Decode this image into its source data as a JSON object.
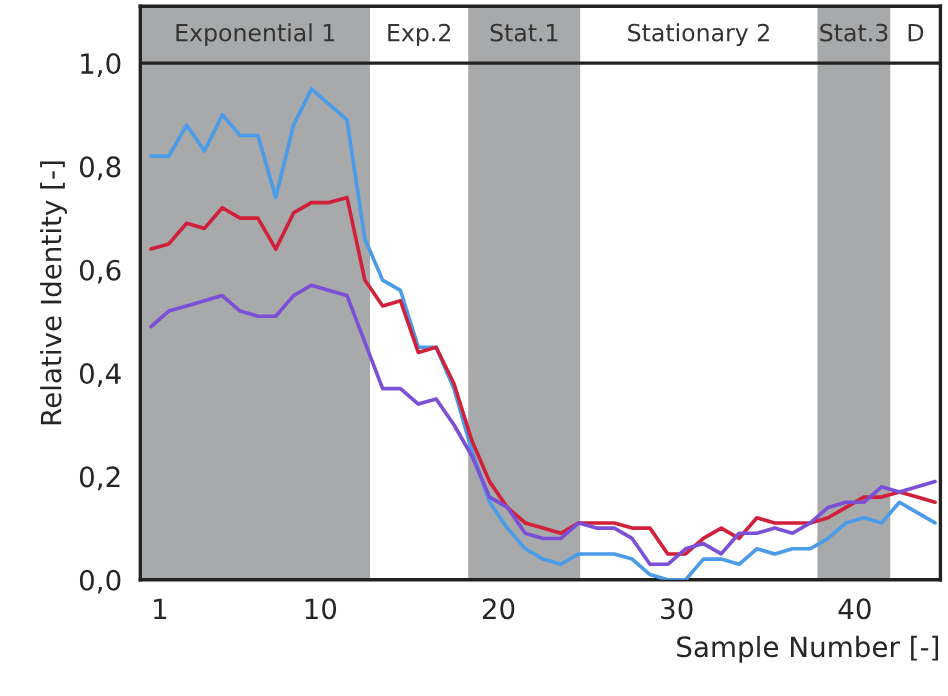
{
  "chart_data": {
    "type": "line",
    "xlabel": "Sample Number [-]",
    "ylabel": "Relative Identity [-]",
    "x": [
      0.5,
      1.5,
      2.5,
      3.5,
      4.5,
      5.5,
      6.5,
      7.5,
      8.5,
      9.5,
      10.5,
      11.5,
      12.5,
      13.5,
      14.5,
      15.5,
      16.5,
      17.5,
      18.5,
      19.5,
      20.5,
      21.5,
      22.5,
      23.5,
      24.5,
      25.5,
      26.5,
      27.5,
      28.5,
      29.5,
      30.5,
      31.5,
      32.5,
      33.5,
      34.5,
      35.5,
      36.5,
      37.5,
      38.5,
      39.5,
      40.5,
      41.5,
      42.5,
      43.5,
      44.5
    ],
    "series": [
      {
        "color": "#4a9be8",
        "values": [
          0.82,
          0.82,
          0.88,
          0.83,
          0.9,
          0.86,
          0.86,
          0.74,
          0.88,
          0.95,
          0.92,
          0.89,
          0.66,
          0.58,
          0.56,
          0.45,
          0.45,
          0.37,
          0.25,
          0.15,
          0.1,
          0.06,
          0.04,
          0.03,
          0.05,
          0.05,
          0.05,
          0.04,
          0.01,
          0.0,
          0.0,
          0.04,
          0.04,
          0.03,
          0.06,
          0.05,
          0.06,
          0.06,
          0.08,
          0.11,
          0.12,
          0.11,
          0.15,
          0.13,
          0.11
        ]
      },
      {
        "color": "#d0203a",
        "values": [
          0.64,
          0.65,
          0.69,
          0.68,
          0.72,
          0.7,
          0.7,
          0.64,
          0.71,
          0.73,
          0.73,
          0.74,
          0.58,
          0.53,
          0.54,
          0.44,
          0.45,
          0.38,
          0.27,
          0.19,
          0.14,
          0.11,
          0.1,
          0.09,
          0.11,
          0.11,
          0.11,
          0.1,
          0.1,
          0.05,
          0.05,
          0.08,
          0.1,
          0.08,
          0.12,
          0.11,
          0.11,
          0.11,
          0.12,
          0.14,
          0.16,
          0.16,
          0.17,
          0.16,
          0.15
        ]
      },
      {
        "color": "#7b4fd6",
        "values": [
          0.49,
          0.52,
          0.53,
          0.54,
          0.55,
          0.52,
          0.51,
          0.51,
          0.55,
          0.57,
          0.56,
          0.55,
          0.46,
          0.37,
          0.37,
          0.34,
          0.35,
          0.3,
          0.24,
          0.16,
          0.14,
          0.09,
          0.08,
          0.08,
          0.11,
          0.1,
          0.1,
          0.08,
          0.03,
          0.03,
          0.06,
          0.07,
          0.05,
          0.09,
          0.09,
          0.1,
          0.09,
          0.11,
          0.14,
          0.15,
          0.15,
          0.18,
          0.17,
          0.18,
          0.19
        ]
      }
    ],
    "xlim": [
      -0.1,
      44.8
    ],
    "xticks": [
      1,
      10,
      20,
      30,
      40
    ],
    "ylim": [
      0,
      1.11
    ],
    "yticks": [
      {
        "value": 0,
        "label": "0,0"
      },
      {
        "value": 0.2,
        "label": "0,2"
      },
      {
        "value": 0.4,
        "label": "0,4"
      },
      {
        "value": 0.6,
        "label": "0,6"
      },
      {
        "value": 0.8,
        "label": "0,8"
      },
      {
        "value": 1.0,
        "label": "1,0"
      }
    ],
    "bands": [
      {
        "axis": "x",
        "from": -0.1,
        "to": 12.8,
        "label": "Exponential 1",
        "color": "#a7a9ab"
      },
      {
        "axis": "x",
        "from": 12.8,
        "to": 18.3,
        "label": "Exp.2",
        "color": "#ffffff"
      },
      {
        "axis": "x",
        "from": 18.3,
        "to": 24.6,
        "label": "Stat.1",
        "color": "#a7a9ab"
      },
      {
        "axis": "x",
        "from": 24.6,
        "to": 37.9,
        "label": "Stationary 2",
        "color": "#ffffff"
      },
      {
        "axis": "x",
        "from": 37.9,
        "to": 42.0,
        "label": "Stat.3",
        "color": "#a7a9ab"
      },
      {
        "axis": "x",
        "from": 42.0,
        "to": 44.8,
        "label": "D",
        "color": "#ffffff"
      }
    ],
    "ref_lines": [
      {
        "axis": "y",
        "value": 1.0,
        "color": "#222222"
      }
    ],
    "grid": false,
    "legend": false,
    "line_style": "solid",
    "marker": "none"
  }
}
